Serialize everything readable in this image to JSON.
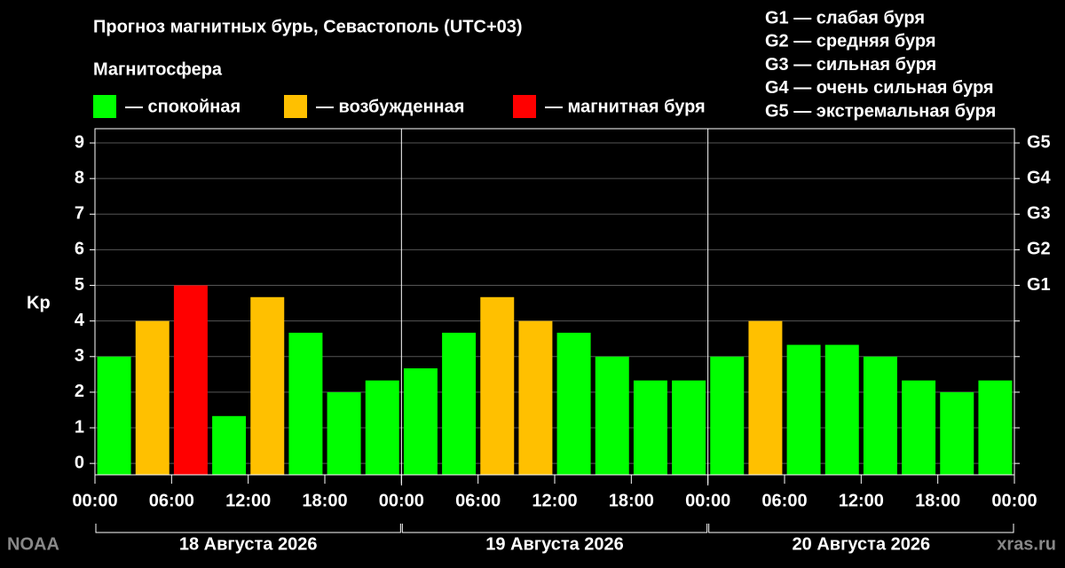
{
  "chart_data": {
    "type": "bar",
    "title": "Прогноз магнитных бурь, Севастополь (UTC+03)",
    "legend_title": "Магнитосфера",
    "legend": [
      {
        "label": "— спокойная",
        "color": "#00ff00"
      },
      {
        "label": "— возбужденная",
        "color": "#ffc000"
      },
      {
        "label": "— магнитная буря",
        "color": "#ff0000"
      }
    ],
    "scale_legend": [
      "G1 — слабая буря",
      "G2 — средняя буря",
      "G3 — сильная буря",
      "G4 — очень сильная буря",
      "G5 — экстремальная буря"
    ],
    "ylabel": "Kp",
    "x": [
      1.5,
      4.5,
      7.5,
      10.5,
      13.5,
      16.5,
      19.5,
      22.5,
      25.5,
      28.5,
      31.5,
      34.5,
      37.5,
      40.5,
      43.5,
      46.5,
      49.5,
      52.5,
      55.5,
      58.5,
      61.5,
      64.5,
      67.5,
      70.5
    ],
    "values": [
      3,
      4,
      5,
      1.33,
      4.67,
      3.67,
      2,
      2.33,
      2.67,
      3.67,
      4.67,
      4,
      3.67,
      3,
      2.33,
      2.33,
      3,
      4,
      3.33,
      3.33,
      3,
      2.33,
      2,
      2.33
    ],
    "colors": [
      "#00ff00",
      "#ffc000",
      "#ff0000",
      "#00ff00",
      "#ffc000",
      "#00ff00",
      "#00ff00",
      "#00ff00",
      "#00ff00",
      "#00ff00",
      "#ffc000",
      "#ffc000",
      "#00ff00",
      "#00ff00",
      "#00ff00",
      "#00ff00",
      "#00ff00",
      "#ffc000",
      "#00ff00",
      "#00ff00",
      "#00ff00",
      "#00ff00",
      "#00ff00",
      "#00ff00"
    ],
    "xlim": [
      0,
      72
    ],
    "xticks": [
      {
        "value": 0,
        "label": "00:00"
      },
      {
        "value": 6,
        "label": "06:00"
      },
      {
        "value": 12,
        "label": "12:00"
      },
      {
        "value": 18,
        "label": "18:00"
      },
      {
        "value": 24,
        "label": "00:00"
      },
      {
        "value": 30,
        "label": "06:00"
      },
      {
        "value": 36,
        "label": "12:00"
      },
      {
        "value": 42,
        "label": "18:00"
      },
      {
        "value": 48,
        "label": "00:00"
      },
      {
        "value": 54,
        "label": "06:00"
      },
      {
        "value": 60,
        "label": "12:00"
      },
      {
        "value": 66,
        "label": "18:00"
      },
      {
        "value": 72,
        "label": "00:00"
      }
    ],
    "ylim": [
      -0.32,
      9.4
    ],
    "yticks": [
      0,
      1,
      2,
      3,
      4,
      5,
      6,
      7,
      8,
      9
    ],
    "y2ticks": [
      {
        "value": 5,
        "label": "G1"
      },
      {
        "value": 6,
        "label": "G2"
      },
      {
        "value": 7,
        "label": "G3"
      },
      {
        "value": 8,
        "label": "G4"
      },
      {
        "value": 9,
        "label": "G5"
      }
    ],
    "grid": true,
    "days": [
      {
        "label": "18 Августа 2026",
        "range": [
          0,
          24
        ]
      },
      {
        "label": "19 Августа 2026",
        "range": [
          24,
          48
        ]
      },
      {
        "label": "20 Августа 2026",
        "range": [
          48,
          72
        ]
      }
    ],
    "source_left": "NOAA",
    "source_right": "xras.ru"
  }
}
